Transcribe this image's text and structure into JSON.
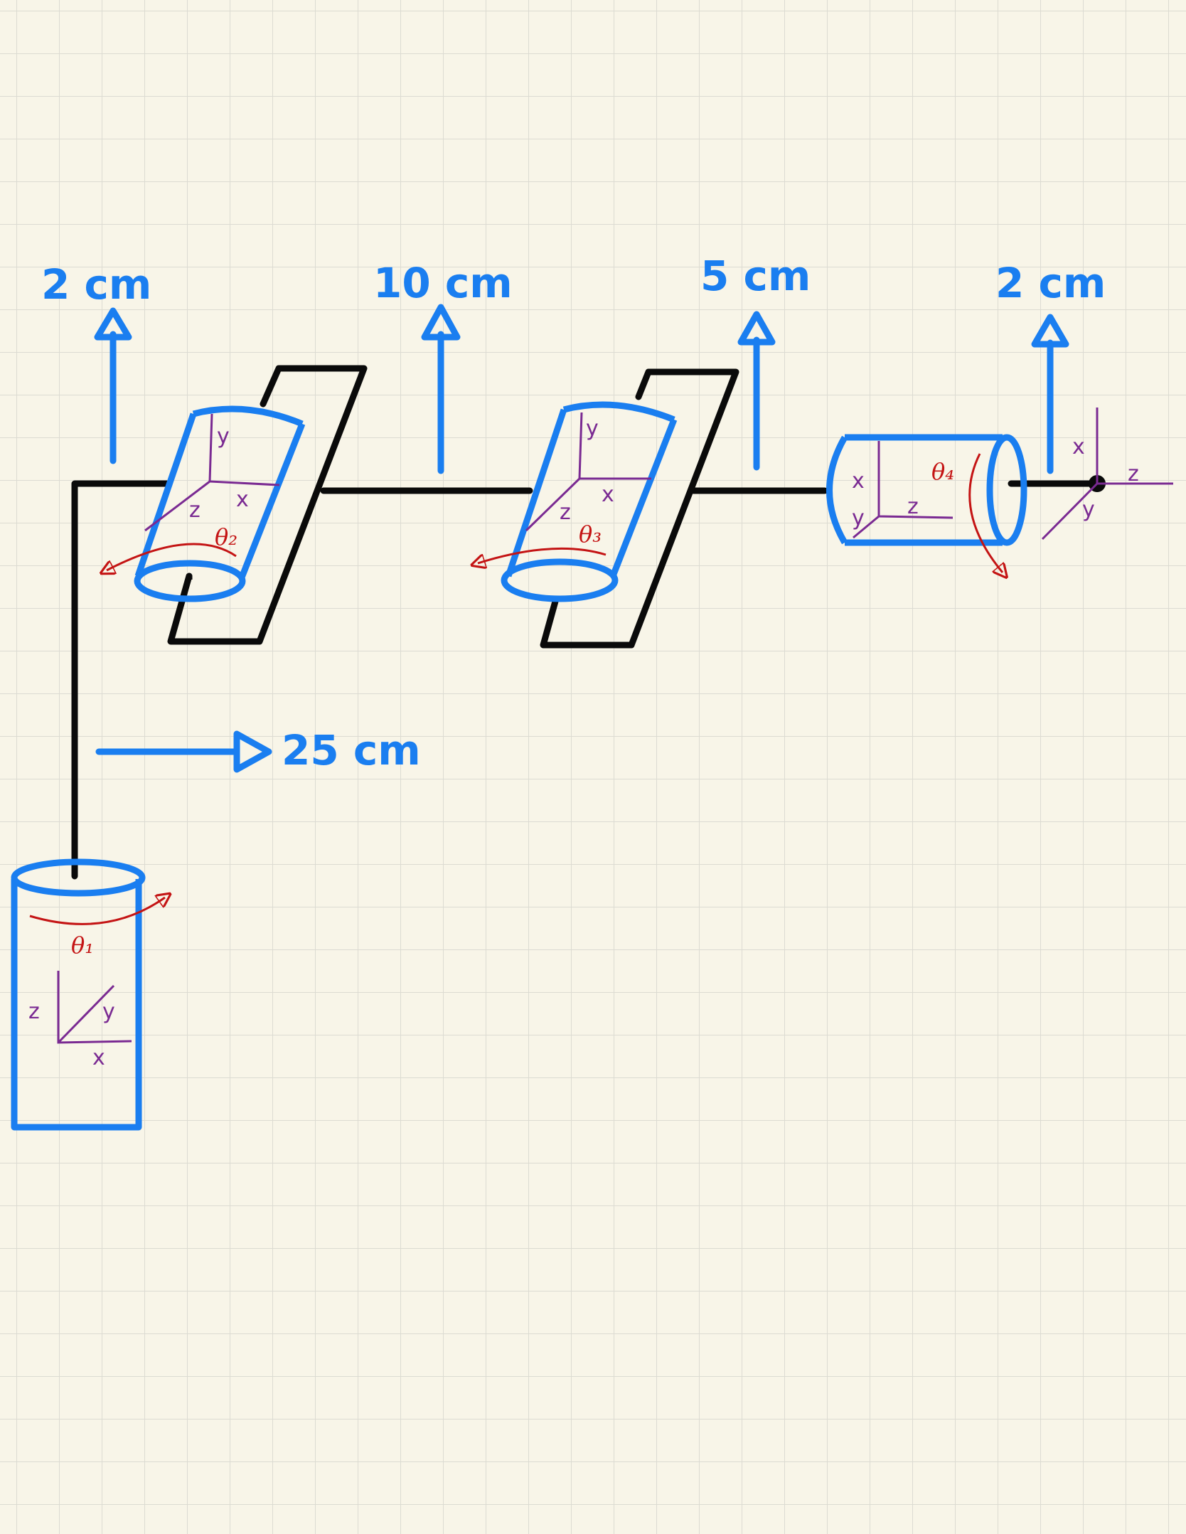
{
  "colors": {
    "paper": "#f8f5e8",
    "grid": "#dcdbd2",
    "blue": "#1a7ef0",
    "black": "#0a0a0a",
    "purple": "#7a2a92",
    "red": "#c41414"
  },
  "dimensions": {
    "d1": "2 cm",
    "d2": "10 cm",
    "d3": "5 cm",
    "d4": "2 cm",
    "d5": "25 cm"
  },
  "joints": {
    "base": {
      "angle": "θ₁",
      "axes": {
        "z": "z",
        "y": "y",
        "x": "x"
      }
    },
    "j2": {
      "angle": "θ₂",
      "axes": {
        "y": "y",
        "z": "z",
        "x": "x"
      }
    },
    "j3": {
      "angle": "θ₃",
      "axes": {
        "y": "y",
        "z": "z",
        "x": "x"
      }
    },
    "j4": {
      "angle": "θ₄",
      "axes": {
        "x": "x",
        "y": "y",
        "z": "z"
      }
    },
    "end_effector": {
      "axes": {
        "x": "x",
        "z": "z",
        "y": "y"
      }
    }
  }
}
